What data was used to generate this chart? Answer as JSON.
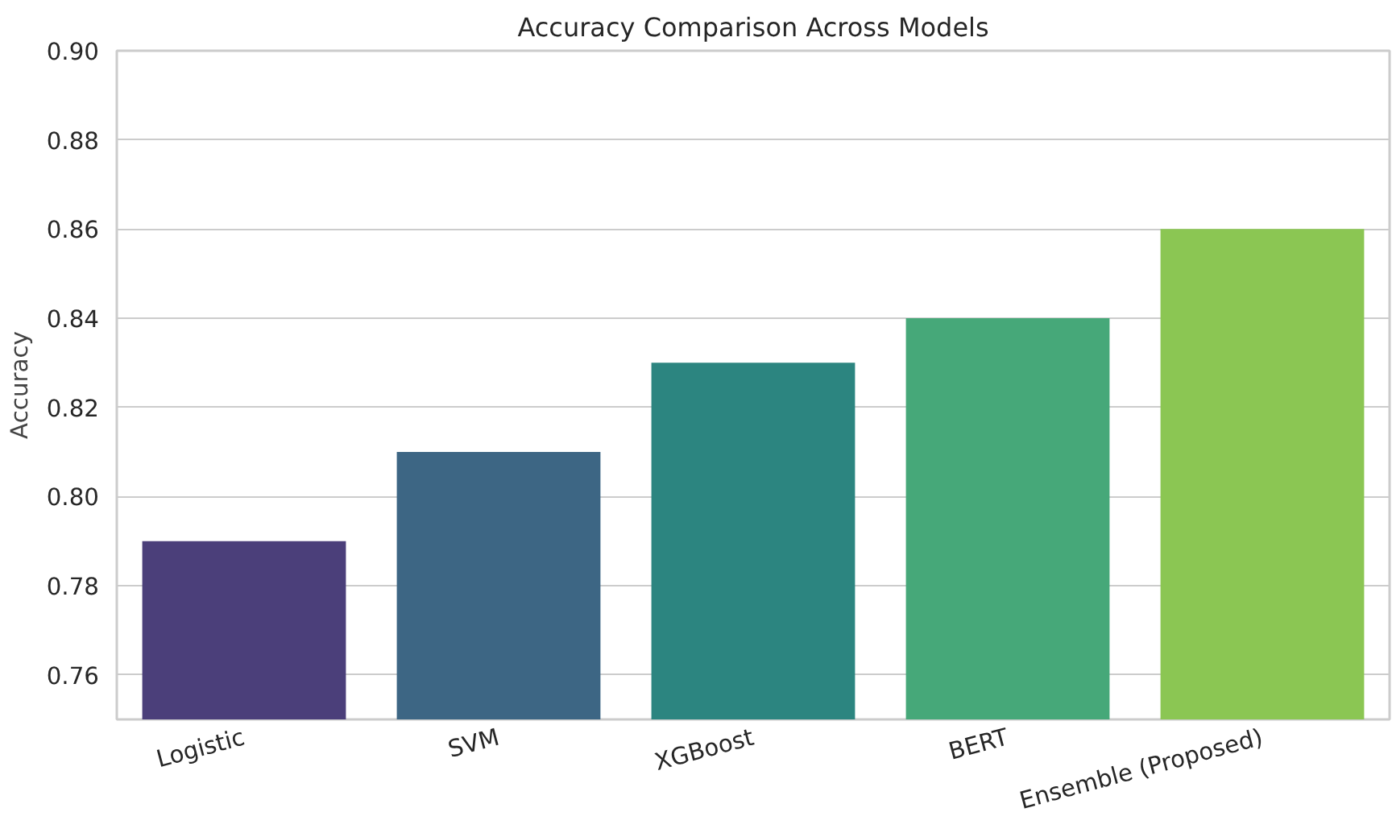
{
  "chart_data": {
    "type": "bar",
    "title": "Accuracy Comparison Across Models",
    "ylabel": "Accuracy",
    "categories": [
      "Logistic",
      "SVM",
      "XGBoost",
      "BERT",
      "Ensemble (Proposed)"
    ],
    "values": [
      0.79,
      0.81,
      0.83,
      0.84,
      0.86
    ],
    "colors": [
      "#4b3f7a",
      "#3d6684",
      "#2c8580",
      "#46a879",
      "#8bc653"
    ],
    "ylim": [
      0.75,
      0.9
    ],
    "yticks": [
      0.76,
      0.78,
      {
        "value": 0.8,
        "label": "0.80"
      },
      0.82,
      0.84,
      0.86,
      0.88,
      {
        "value": 0.9,
        "label": "0.90"
      }
    ],
    "grid": "y"
  }
}
